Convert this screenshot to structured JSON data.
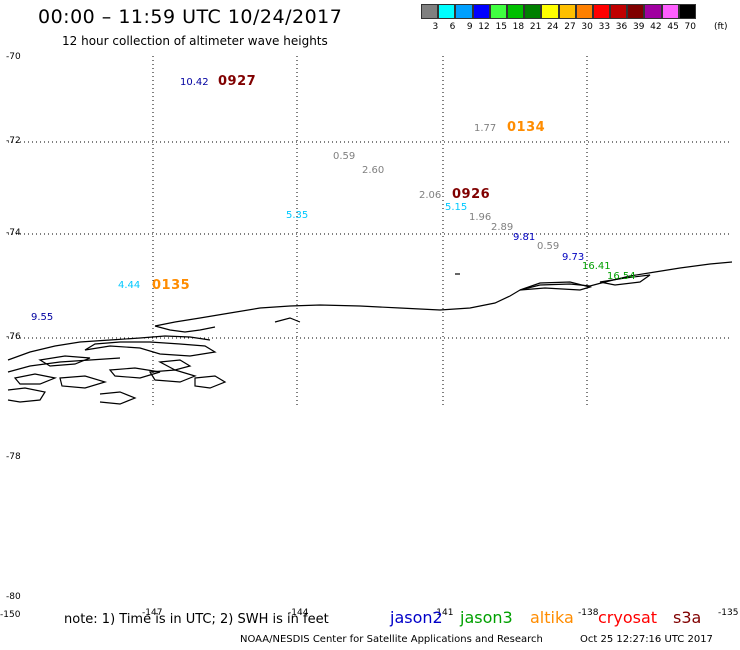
{
  "header": {
    "title": "00:00 – 11:59 UTC 10/24/2017",
    "subtitle": "12 hour collection of altimeter wave heights"
  },
  "legend": {
    "swatches": [
      {
        "label": "3",
        "color": "#808080"
      },
      {
        "label": "6",
        "color": "#00ffff"
      },
      {
        "label": "9",
        "color": "#00a0ff"
      },
      {
        "label": "12",
        "color": "#0000ff"
      },
      {
        "label": "15",
        "color": "#40ff40"
      },
      {
        "label": "18",
        "color": "#00c000"
      },
      {
        "label": "21",
        "color": "#008000"
      },
      {
        "label": "24",
        "color": "#ffff00"
      },
      {
        "label": "27",
        "color": "#ffc000"
      },
      {
        "label": "30",
        "color": "#ff8000"
      },
      {
        "label": "33",
        "color": "#ff0000"
      },
      {
        "label": "36",
        "color": "#c00000"
      },
      {
        "label": "39",
        "color": "#800000"
      },
      {
        "label": "42",
        "color": "#a000a0"
      },
      {
        "label": "45",
        "color": "#ff60ff"
      },
      {
        "label": "70",
        "color": "#000000"
      }
    ],
    "unit": "(ft)"
  },
  "axes": {
    "lat_labels": [
      "-70",
      "-72",
      "-74",
      "-76",
      "-78",
      "-80"
    ],
    "lon_labels": [
      "-150",
      "-147",
      "-144",
      "-141",
      "-138",
      "-135"
    ]
  },
  "observations": [
    {
      "text": "10.42",
      "color": "#0000a0"
    },
    {
      "text": "0927",
      "color": "#800000",
      "kind": "time"
    },
    {
      "text": "1.77",
      "color": "#808080"
    },
    {
      "text": "0134",
      "color": "#ff8c00",
      "kind": "time"
    },
    {
      "text": "0.59",
      "color": "#808080"
    },
    {
      "text": "2.60",
      "color": "#808080"
    },
    {
      "text": "2.06",
      "color": "#808080"
    },
    {
      "text": "0926",
      "color": "#800000",
      "kind": "time"
    },
    {
      "text": "5.15",
      "color": "#00c8ff"
    },
    {
      "text": "5.35",
      "color": "#00c8ff"
    },
    {
      "text": "1.96",
      "color": "#808080"
    },
    {
      "text": "2.89",
      "color": "#808080"
    },
    {
      "text": "9.81",
      "color": "#0000c0"
    },
    {
      "text": "0.59",
      "color": "#808080"
    },
    {
      "text": "9.73",
      "color": "#0000c0"
    },
    {
      "text": "16.41",
      "color": "#00a000"
    },
    {
      "text": "16.54",
      "color": "#00a000"
    },
    {
      "text": "4.44",
      "color": "#00c8ff"
    },
    {
      "text": "0135",
      "color": "#ff8c00",
      "kind": "time"
    },
    {
      "text": "9.55",
      "color": "#0000a0"
    }
  ],
  "footer": {
    "note": "note: 1) Time is in UTC; 2) SWH is in feet",
    "satellites": [
      {
        "name": "jason2",
        "color": "#0000c8"
      },
      {
        "name": "jason3",
        "color": "#00a000"
      },
      {
        "name": "altika",
        "color": "#ff8c00"
      },
      {
        "name": "cryosat",
        "color": "#ff0000"
      },
      {
        "name": "s3a",
        "color": "#800000"
      }
    ],
    "credit": "NOAA/NESDIS Center for Satellite Applications and Research",
    "generated": "Oct 25 12:27:16 UTC 2017"
  }
}
